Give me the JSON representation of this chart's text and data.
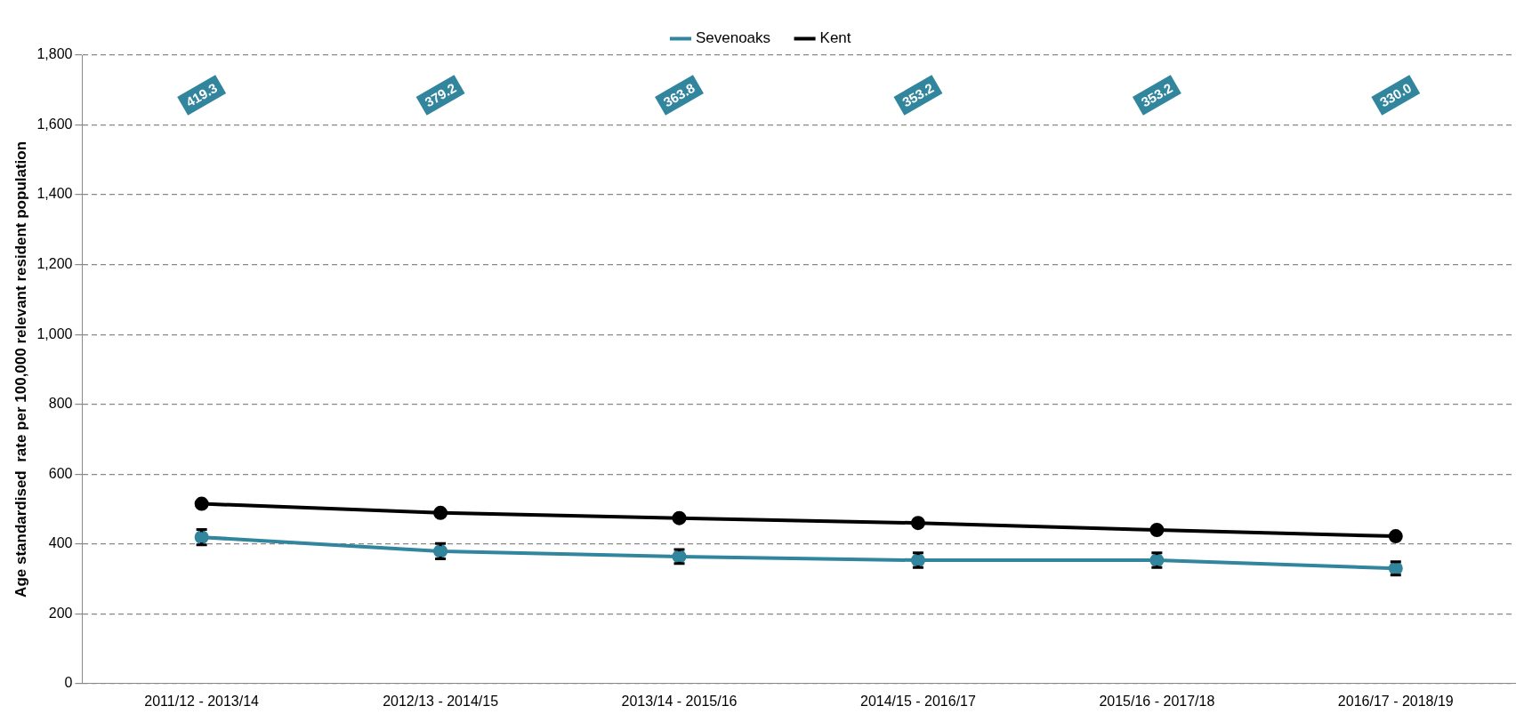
{
  "chart_data": {
    "type": "line",
    "ylabel": "Age standardised  rate per 100,000 relevant resident population",
    "categories": [
      "2011/12 - 2013/14",
      "2012/13 - 2014/15",
      "2013/14 - 2015/16",
      "2014/15 - 2016/17",
      "2015/16 - 2017/18",
      "2016/17 - 2018/19"
    ],
    "series": [
      {
        "name": "Sevenoaks",
        "color": "#31859c",
        "values": [
          419.3,
          379.2,
          363.8,
          353.2,
          353.2,
          330.0
        ],
        "errors": [
          22,
          22,
          20,
          21,
          21,
          19
        ]
      },
      {
        "name": "Kent",
        "color": "#000000",
        "values": [
          515,
          489,
          474,
          460,
          440,
          422
        ]
      }
    ],
    "annotations": [
      "419.3",
      "379.2",
      "363.8",
      "353.2",
      "353.2",
      "330.0"
    ],
    "ylim": [
      0,
      1800
    ],
    "yticks": [
      0,
      200,
      400,
      600,
      800,
      {
        "value": 1000,
        "label": "1,000"
      },
      {
        "value": 1200,
        "label": "1,200"
      },
      {
        "value": 1400,
        "label": "1,400"
      },
      {
        "value": 1600,
        "label": "1,600"
      },
      {
        "value": 1800,
        "label": "1,800"
      }
    ],
    "grid": "y",
    "legend": "top",
    "marker": "circle",
    "line_style": "solid"
  }
}
